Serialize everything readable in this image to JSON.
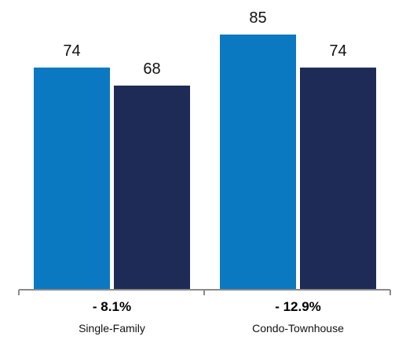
{
  "chart_data": {
    "type": "bar",
    "categories": [
      "Single-Family",
      "Condo-Townhouse"
    ],
    "category_changes": [
      "- 8.1%",
      "- 12.9%"
    ],
    "series": [
      {
        "values": [
          74,
          85
        ],
        "color": "#0b78c2"
      },
      {
        "values": [
          68,
          74
        ],
        "color": "#1e2b57"
      }
    ],
    "ylim": [
      0,
      85
    ],
    "grid": false,
    "axis_color": "#8a8a8a"
  }
}
